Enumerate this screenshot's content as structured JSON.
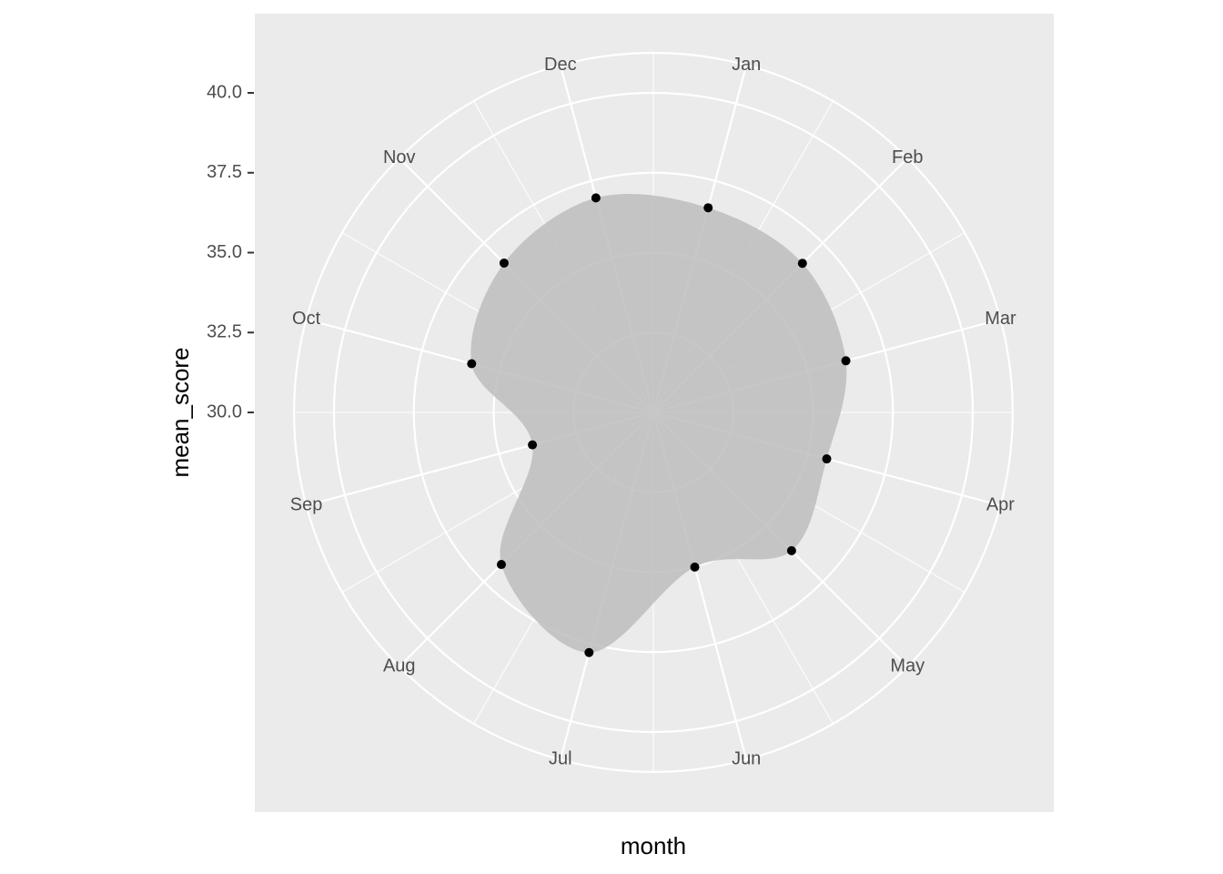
{
  "chart_data": {
    "type": "polar",
    "x_label": "month",
    "y_label": "mean_score",
    "categories": [
      "Jan",
      "Feb",
      "Mar",
      "Apr",
      "May",
      "Jun",
      "Jul",
      "Aug",
      "Sep",
      "Oct",
      "Nov",
      "Dec"
    ],
    "values": [
      36.63,
      36.6,
      36.24,
      35.62,
      36.12,
      35.01,
      37.78,
      36.73,
      33.92,
      35.89,
      36.61,
      36.95
    ],
    "ylim": [
      30,
      40
    ],
    "yticks": [
      {
        "value": 30,
        "label": "30.0"
      },
      {
        "value": 32.5,
        "label": "32.5"
      },
      {
        "value": 35,
        "label": "35.0"
      },
      {
        "value": 37.5,
        "label": "37.5"
      },
      {
        "value": 40,
        "label": "40.0"
      }
    ],
    "color": "#000000",
    "area_color": "#bdbdbd",
    "grid": true
  }
}
